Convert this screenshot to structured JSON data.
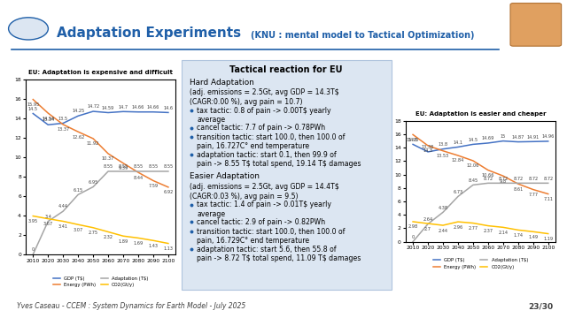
{
  "header": {
    "title": "Adaptation Experiments",
    "subtitle": "(KNU : mental model to Tactical Optimization)"
  },
  "chart_data": [
    {
      "type": "line",
      "title": "EU: Adaptation is expensive and difficult",
      "categories": [
        "2010",
        "2020",
        "2030",
        "2040",
        "2050",
        "2060",
        "2070",
        "2080",
        "2090",
        "2100"
      ],
      "ylim": [
        0,
        18
      ],
      "yticks": [
        0,
        2,
        4,
        6,
        8,
        10,
        12,
        14,
        16,
        18
      ],
      "grid": false,
      "legend": "bottom",
      "data_labels": true,
      "series": [
        {
          "name": "GDP (T$)",
          "color": "#4472c4",
          "values": [
            14.5,
            13.34,
            13.5,
            14.25,
            14.72,
            14.59,
            14.7,
            14.66,
            14.66,
            14.6
          ]
        },
        {
          "name": "Energy (PWh)",
          "color": "#ed7d31",
          "values": [
            15.95,
            14.54,
            13.37,
            12.62,
            11.92,
            10.37,
            9.39,
            8.44,
            7.59,
            6.92
          ]
        },
        {
          "name": "Adaptation (T$)",
          "color": "#a5a5a5",
          "values": [
            0,
            3.4,
            4.44,
            6.15,
            6.95,
            8.55,
            8.55,
            8.55,
            8.55,
            8.55
          ]
        },
        {
          "name": "CO2(Gt/y)",
          "color": "#ffc000",
          "values": [
            3.95,
            3.67,
            3.41,
            3.07,
            2.75,
            2.32,
            1.89,
            1.69,
            1.43,
            1.13
          ]
        }
      ]
    },
    {
      "type": "line",
      "title": "EU: Adaptation is easier and cheaper",
      "categories": [
        "2010",
        "2020",
        "2030",
        "2040",
        "2050",
        "2060",
        "2070",
        "2080",
        "2090",
        "2100"
      ],
      "ylim": [
        0,
        18
      ],
      "yticks": [
        0,
        2,
        4,
        6,
        8,
        10,
        12,
        14,
        16,
        18
      ],
      "grid": false,
      "legend": "bottom",
      "data_labels": true,
      "series": [
        {
          "name": "GDP (T$)",
          "color": "#4472c4",
          "values": [
            14.5,
            13.38,
            13.8,
            14.1,
            14.5,
            14.69,
            15,
            14.87,
            14.91,
            14.96
          ]
        },
        {
          "name": "Energy (PWh)",
          "color": "#ed7d31",
          "values": [
            15.95,
            14.3,
            13.53,
            12.84,
            12.06,
            10.66,
            9.8,
            8.61,
            7.77,
            7.11
          ]
        },
        {
          "name": "Adaptation (T$)",
          "color": "#a5a5a5",
          "values": [
            0,
            2.64,
            4.38,
            6.73,
            8.45,
            8.72,
            8.72,
            8.72,
            8.72,
            8.72
          ]
        },
        {
          "name": "CO2(Gt/y)",
          "color": "#ffc000",
          "values": [
            2.98,
            2.7,
            2.44,
            2.96,
            2.77,
            2.37,
            2.14,
            1.74,
            1.49,
            1.19
          ]
        }
      ]
    }
  ],
  "panel": {
    "title": "Tactical reaction for EU",
    "sections": [
      {
        "heading": "Hard Adaptation",
        "summary": "(adj. emissions = 2.5Gt, avg GDP = 14.3T$ (CAGR:0.00 %), avg pain = 10.7)",
        "bullets": [
          "tax tactic: 0.8 of pain -> 0.00T$ yearly average",
          "cancel tactic: 7.7 of pain -> 0.78PWh",
          "transition tactic: start 100.0, then 100.0 of pain, 16.727C° end temperature",
          "adaptation tactic: start 0.1, then 99.9 of pain -> 8.55 T$ total spend, 19.14 T$ damages"
        ]
      },
      {
        "heading": "Easier Adaptation",
        "summary": "(adj. emissions = 2.5Gt, avg GDP = 14.4T$ (CAGR:0.03 %), avg pain = 9.5)",
        "bullets": [
          "tax tactic: 1.4 of pain -> 0.01T$ yearly average",
          "cancel tactic: 2.9 of pain -> 0.82PWh",
          "transition tactic: start 100.0, then 100.0 of pain, 16.729C° end temperature",
          "adaptation tactic: start 5.6, then 55.8 of pain -> 8.72 T$ total spend, 11.09 T$ damages"
        ]
      }
    ]
  },
  "footer": {
    "text": "Yves Caseau - CCEM : System Dynamics for Earth Model - July 2025",
    "page": "23/30"
  }
}
